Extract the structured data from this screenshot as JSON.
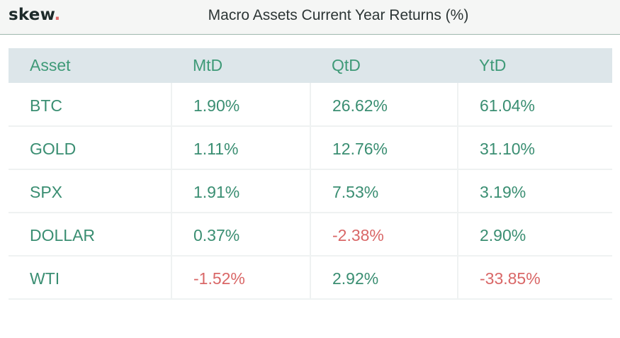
{
  "header": {
    "logo_text": "skew",
    "logo_dot": ".",
    "title": "Macro Assets Current Year Returns (%)"
  },
  "colors": {
    "positive": "#3a8e72",
    "negative": "#d96767",
    "header_bg": "#dde6ea",
    "logo_dot": "#e06a6a"
  },
  "chart_data": {
    "type": "table",
    "title": "Macro Assets Current Year Returns (%)",
    "columns": [
      "Asset",
      "MtD",
      "QtD",
      "YtD"
    ],
    "rows": [
      [
        "BTC",
        "1.90%",
        "26.62%",
        "61.04%"
      ],
      [
        "GOLD",
        "1.11%",
        "12.76%",
        "31.10%"
      ],
      [
        "SPX",
        "1.91%",
        "7.53%",
        "3.19%"
      ],
      [
        "DOLLAR",
        "0.37%",
        "-2.38%",
        "2.90%"
      ],
      [
        "WTI",
        "-1.52%",
        "2.92%",
        "-33.85%"
      ]
    ]
  }
}
